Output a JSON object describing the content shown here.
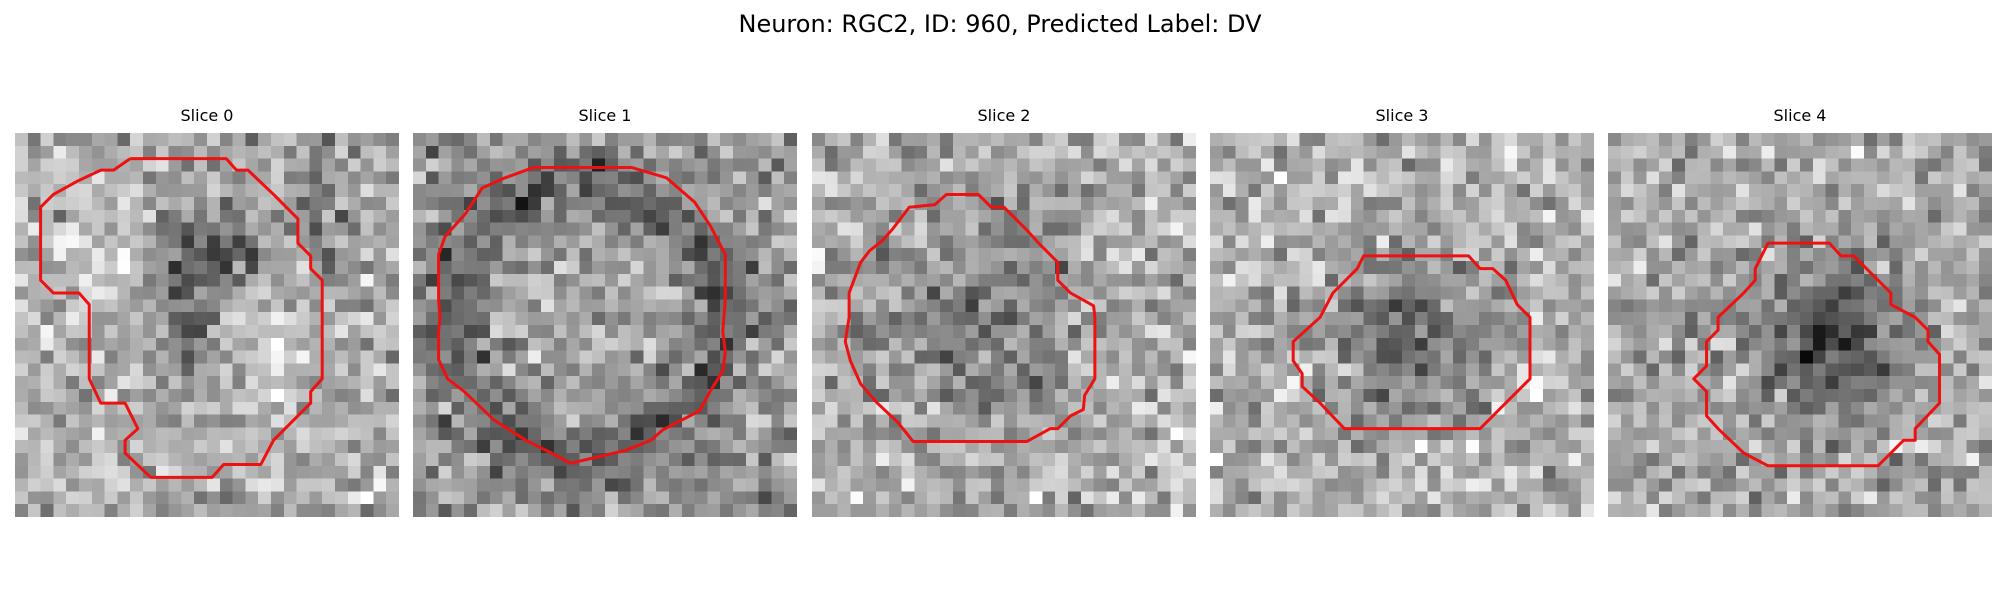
{
  "figure": {
    "title": "Neuron: RGC2, ID: 960, Predicted Label: DV"
  },
  "colors": {
    "contour": "#ee1111",
    "background": "#ffffff",
    "colormap": "grayscale"
  },
  "slices": [
    {
      "label": "Slice 0"
    },
    {
      "label": "Slice 1"
    },
    {
      "label": "Slice 2"
    },
    {
      "label": "Slice 3"
    },
    {
      "label": "Slice 4"
    }
  ]
}
